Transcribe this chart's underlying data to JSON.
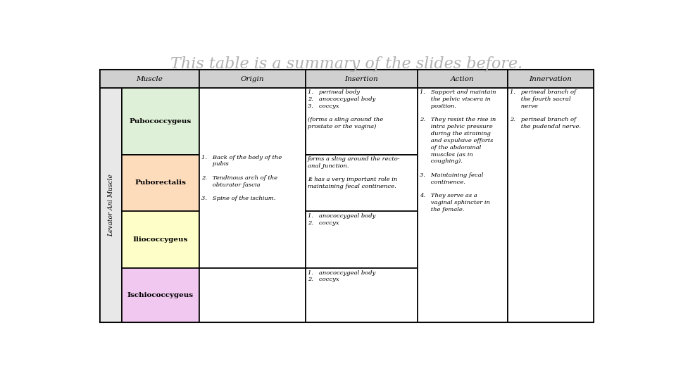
{
  "title": "This table is a summary of the slides before.",
  "title_color": "#b0b0b0",
  "title_fontsize": 16,
  "title_style": "italic",
  "title_family": "serif",
  "bg_color": "#ffffff",
  "header_bg": "#d0d0d0",
  "header_labels": [
    "Muscle",
    "Origin",
    "Insertion",
    "Action",
    "Innervation"
  ],
  "header_fontsize": 7.5,
  "cell_fontsize": 6.0,
  "muscle_label_fontsize": 7.5,
  "muscle_colors": {
    "Pubococcygeus": "#dff0d8",
    "Puborectalis": "#fddcbc",
    "Iliococcygeus": "#fefec8",
    "Ischiococcygeus": "#f0c8f0"
  },
  "levator_color": "#e8e8e8",
  "levator_label": "Levator Ani Muscle",
  "pubococcygeus_insertion": "1.   perineal body\n2.   anococcygeal body\n3.   coccyx\n\n(forms a sling around the\nprostate or the vagina)",
  "puborectalis_insertion": "forms a sling around the recto-\nanal Junction.\n\nIt has a very important role in\nmaintaining fecal continence.",
  "iliococcygeus_insertion": "1.   anococcygeal body\n2.   coccyx",
  "ischiococcygeus_insertion": "1.   anococcygeal body\n2.   coccyx",
  "origin_text": "1.   Back of the body of the\n      pubis\n\n2.   Tendinous arch of the\n      obturator fascia\n\n3.   Spine of the ischium.",
  "action_text": "1.   Support and maintain\n      the pelvic viscera in\n      position.\n\n2.   They resist the rise in\n      intra pelvic pressure\n      during the straining\n      and expulsive efforts\n      of the abdominal\n      muscles (as in\n      coughing).\n\n3.   Maintaining fecal\n      continence.\n\n4.   They serve as a\n      vaginal sphincter in\n      the female.",
  "innervation_text": "1.   perineal branch of\n      the fourth sacral\n      nerve\n\n2.   perineal branch of\n      the pudendal nerve."
}
